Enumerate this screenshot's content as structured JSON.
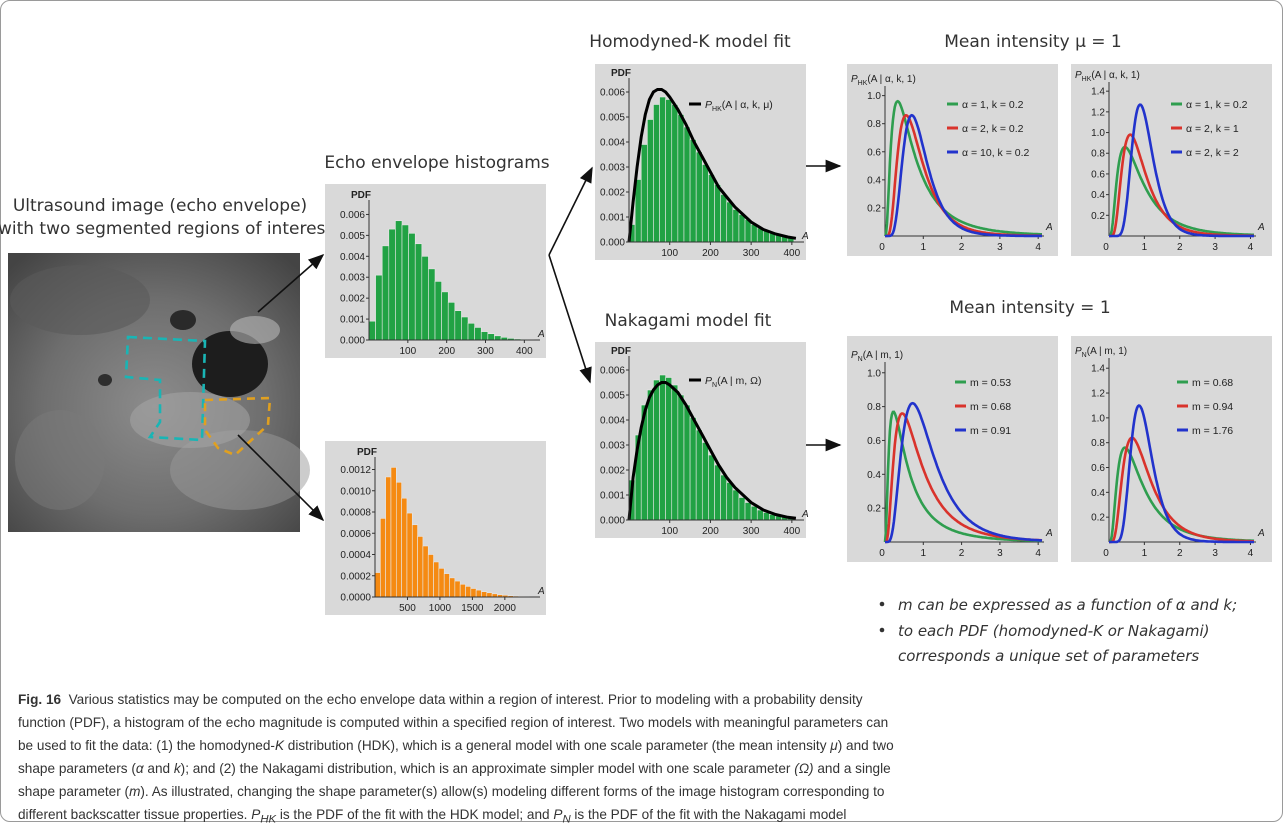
{
  "figure": {
    "texts": {
      "ultrasound_line1": "Ultrasound image (echo envelope)",
      "ultrasound_line2": "with two segmented regions of interest",
      "echo_title": "Echo envelope histograms",
      "hk_fit_title": "Homodyned-K model fit",
      "nk_fit_title": "Nakagami model fit",
      "mean_hk": "Mean intensity μ = 1",
      "mean_nk": "Mean intensity = 1",
      "bullet1": "m can be expressed as a function of α and k;",
      "bullet2a": "to each PDF (homodyned-K or Nakagami)",
      "bullet2b": "corresponds a unique set of parameters",
      "hk_fit_legend": "P_HK(A | α, k, μ)",
      "nk_fit_legend": "P_N(A | m, Ω)"
    },
    "colors": {
      "panel_bg": "#d9d9d9",
      "green_bar": "#21a244",
      "orange_bar": "#f58a12",
      "curve_green": "#2f9e4f",
      "curve_red": "#d9332c",
      "curve_blue": "#2233cc",
      "roi_cyan": "#19b5b5",
      "roi_orange": "#e0a020"
    }
  },
  "chart_data": [
    {
      "id": "echo-green",
      "type": "bar",
      "ylabel": "PDF",
      "xlabel": "A",
      "xticks": [
        100,
        200,
        300,
        400
      ],
      "yticks": [
        0.0,
        0.001,
        0.002,
        0.003,
        0.004,
        0.005,
        0.006
      ],
      "ytick_labels": [
        "0.000",
        "0.001",
        "0.002",
        "0.003",
        "0.004",
        "0.005",
        "0.006"
      ],
      "xlim": [
        0,
        430
      ],
      "ylim": [
        0,
        0.0065
      ],
      "bin_width": 17,
      "values": [
        0.0009,
        0.0031,
        0.0045,
        0.0053,
        0.0057,
        0.0055,
        0.0051,
        0.0046,
        0.004,
        0.0034,
        0.0028,
        0.0023,
        0.0018,
        0.0014,
        0.0011,
        0.0008,
        0.0006,
        0.0004,
        0.0003,
        0.0002,
        0.00013,
        8e-05,
        5e-05,
        3e-05,
        2e-05
      ]
    },
    {
      "id": "echo-orange",
      "type": "bar",
      "ylabel": "PDF",
      "xlabel": "A",
      "xticks": [
        500,
        1000,
        1500,
        2000
      ],
      "yticks": [
        0.0,
        0.0002,
        0.0004,
        0.0006,
        0.0008,
        0.001,
        0.0012
      ],
      "ytick_labels": [
        "0.0000",
        "0.0002",
        "0.0004",
        "0.0006",
        "0.0008",
        "0.0010",
        "0.0012"
      ],
      "xlim": [
        0,
        2480
      ],
      "ylim": [
        0,
        0.00128
      ],
      "bin_width": 82,
      "values": [
        0.00023,
        0.00074,
        0.00113,
        0.00122,
        0.00108,
        0.00093,
        0.00079,
        0.00068,
        0.00057,
        0.00048,
        0.0004,
        0.00033,
        0.00027,
        0.00022,
        0.00018,
        0.00015,
        0.00012,
        0.0001,
        8e-05,
        6.5e-05,
        5e-05,
        4e-05,
        3e-05,
        2.2e-05,
        1.7e-05,
        1.2e-05,
        9e-06,
        6e-06,
        4e-06
      ]
    },
    {
      "id": "hk-fit",
      "type": "bar",
      "ylabel": "PDF",
      "xlabel": "A",
      "xticks": [
        100,
        200,
        300,
        400
      ],
      "yticks": [
        0.0,
        0.001,
        0.002,
        0.003,
        0.004,
        0.005,
        0.006
      ],
      "ytick_labels": [
        "0.000",
        "0.001",
        "0.002",
        "0.003",
        "0.004",
        "0.005",
        "0.006"
      ],
      "xlim": [
        0,
        420
      ],
      "ylim": [
        0,
        0.0064
      ],
      "bin_width": 15,
      "values": [
        0.0007,
        0.0025,
        0.0039,
        0.0049,
        0.0055,
        0.0058,
        0.0057,
        0.0055,
        0.0051,
        0.0046,
        0.0041,
        0.0036,
        0.0031,
        0.0027,
        0.0023,
        0.0019,
        0.0016,
        0.0013,
        0.0011,
        0.0009,
        0.0007,
        0.00056,
        0.00045,
        0.00035,
        0.00028,
        0.00022,
        0.00017
      ],
      "curve": {
        "name": "P_HK(A | α, k, μ)",
        "x": [
          0,
          10,
          20,
          30,
          40,
          50,
          60,
          70,
          80,
          90,
          100,
          120,
          140,
          160,
          180,
          200,
          220,
          240,
          260,
          280,
          300,
          330,
          360,
          390,
          410
        ],
        "y": [
          0,
          0.0016,
          0.003,
          0.0042,
          0.0051,
          0.0057,
          0.006,
          0.0061,
          0.0061,
          0.006,
          0.0058,
          0.0053,
          0.0047,
          0.004,
          0.0034,
          0.0028,
          0.0022,
          0.0018,
          0.0014,
          0.0011,
          0.0008,
          0.0005,
          0.00032,
          0.0002,
          0.00015
        ]
      }
    },
    {
      "id": "nk-fit",
      "type": "bar",
      "ylabel": "PDF",
      "xlabel": "A",
      "xticks": [
        100,
        200,
        300,
        400
      ],
      "yticks": [
        0.0,
        0.001,
        0.002,
        0.003,
        0.004,
        0.005,
        0.006
      ],
      "ytick_labels": [
        "0.000",
        "0.001",
        "0.002",
        "0.003",
        "0.004",
        "0.005",
        "0.006"
      ],
      "xlim": [
        0,
        420
      ],
      "ylim": [
        0,
        0.0064
      ],
      "bin_width": 15,
      "values": [
        0.0016,
        0.0034,
        0.0046,
        0.0052,
        0.0056,
        0.0058,
        0.0057,
        0.0054,
        0.005,
        0.0046,
        0.0041,
        0.0036,
        0.0031,
        0.0026,
        0.0022,
        0.0018,
        0.0015,
        0.0012,
        0.0009,
        0.0007,
        0.00055,
        0.0004,
        0.0003,
        0.00022,
        0.00016,
        0.00012,
        9e-05
      ],
      "curve": {
        "name": "P_N(A | m, Ω)",
        "x": [
          0,
          10,
          20,
          30,
          40,
          50,
          60,
          70,
          80,
          90,
          100,
          120,
          140,
          160,
          180,
          200,
          220,
          240,
          260,
          280,
          300,
          330,
          360,
          390,
          410
        ],
        "y": [
          0,
          0.0017,
          0.0028,
          0.0037,
          0.0044,
          0.0049,
          0.0052,
          0.0054,
          0.0055,
          0.0055,
          0.0054,
          0.0051,
          0.0046,
          0.004,
          0.0034,
          0.0028,
          0.0022,
          0.0017,
          0.0013,
          0.001,
          0.0007,
          0.0004,
          0.00022,
          0.00011,
          7e-05
        ]
      }
    },
    {
      "id": "hk-a",
      "type": "line",
      "ylabel": "P_HK(A | α, k, 1)",
      "xlabel": "A",
      "xticks": [
        1,
        2,
        3,
        4
      ],
      "yticks": [
        0.2,
        0.4,
        0.6,
        0.8,
        1.0
      ],
      "ytick_labels": [
        "0.2",
        "0.4",
        "0.6",
        "0.8",
        "1.0"
      ],
      "xlim": [
        0,
        4.1
      ],
      "ylim": [
        0,
        1.04
      ],
      "series": [
        {
          "name": "α = 1,  k = 0.2",
          "color": "#2f9e4f",
          "shape": {
            "peak_x": 0.33,
            "peak_y": 0.96,
            "s": 0.85
          }
        },
        {
          "name": "α = 2,  k = 0.2",
          "color": "#d9332c",
          "shape": {
            "peak_x": 0.55,
            "peak_y": 0.86,
            "s": 0.58
          }
        },
        {
          "name": "α = 10,  k = 0.2",
          "color": "#2233cc",
          "shape": {
            "peak_x": 0.7,
            "peak_y": 0.86,
            "s": 0.45
          }
        }
      ]
    },
    {
      "id": "hk-b",
      "type": "line",
      "ylabel": "P_HK(A | α, k, 1)",
      "xlabel": "A",
      "xticks": [
        1,
        2,
        3,
        4
      ],
      "yticks": [
        0.2,
        0.4,
        0.6,
        0.8,
        1.0,
        1.2,
        1.4
      ],
      "ytick_labels": [
        "0.2",
        "0.4",
        "0.6",
        "0.8",
        "1.0",
        "1.2",
        "1.4"
      ],
      "xlim": [
        0,
        4.1
      ],
      "ylim": [
        0,
        1.45
      ],
      "series": [
        {
          "name": "α = 1,  k = 0.2",
          "color": "#2f9e4f",
          "shape": {
            "peak_x": 0.45,
            "peak_y": 0.86,
            "s": 0.75
          }
        },
        {
          "name": "α = 2,  k = 1",
          "color": "#d9332c",
          "shape": {
            "peak_x": 0.6,
            "peak_y": 0.98,
            "s": 0.55
          }
        },
        {
          "name": "α = 2,  k = 2",
          "color": "#2233cc",
          "shape": {
            "peak_x": 0.88,
            "peak_y": 1.27,
            "s": 0.34
          }
        }
      ]
    },
    {
      "id": "nk-a",
      "type": "line",
      "ylabel": "P_N(A | m, 1)",
      "xlabel": "A",
      "xticks": [
        1,
        2,
        3,
        4
      ],
      "yticks": [
        0.2,
        0.4,
        0.6,
        0.8,
        1.0
      ],
      "ytick_labels": [
        "0.2",
        "0.4",
        "0.6",
        "0.8",
        "1.0"
      ],
      "xlim": [
        0,
        4.1
      ],
      "ylim": [
        0,
        1.04
      ],
      "series": [
        {
          "name": "m = 0.53",
          "color": "#2f9e4f",
          "shape": {
            "peak_x": 0.22,
            "peak_y": 0.77,
            "s": 0.95
          }
        },
        {
          "name": "m = 0.68",
          "color": "#d9332c",
          "shape": {
            "peak_x": 0.45,
            "peak_y": 0.76,
            "s": 0.75
          }
        },
        {
          "name": "m = 0.91",
          "color": "#2233cc",
          "shape": {
            "peak_x": 0.72,
            "peak_y": 0.82,
            "s": 0.58
          }
        }
      ]
    },
    {
      "id": "nk-b",
      "type": "line",
      "ylabel": "P_N(A | m, 1)",
      "xlabel": "A",
      "xticks": [
        1,
        2,
        3,
        4
      ],
      "yticks": [
        0.2,
        0.4,
        0.6,
        0.8,
        1.0,
        1.2,
        1.4
      ],
      "ytick_labels": [
        "0.2",
        "0.4",
        "0.6",
        "0.8",
        "1.0",
        "1.2",
        "1.4"
      ],
      "xlim": [
        0,
        4.1
      ],
      "ylim": [
        0,
        1.45
      ],
      "series": [
        {
          "name": "m = 0.68",
          "color": "#2f9e4f",
          "shape": {
            "peak_x": 0.45,
            "peak_y": 0.76,
            "s": 0.75
          }
        },
        {
          "name": "m = 0.94",
          "color": "#d9332c",
          "shape": {
            "peak_x": 0.65,
            "peak_y": 0.84,
            "s": 0.58
          }
        },
        {
          "name": "m = 1.76",
          "color": "#2233cc",
          "shape": {
            "peak_x": 0.85,
            "peak_y": 1.1,
            "s": 0.36
          }
        }
      ]
    }
  ],
  "caption": {
    "fig_label": "Fig. 16",
    "l1": "Various statistics may be computed on the echo envelope data within a region of interest. Prior to modeling with a probability density",
    "l2": "function (PDF), a histogram of the echo magnitude is computed within a specified region of interest. Two models with meaningful parameters can",
    "l3a": "be used to fit the data: (1) the homodyned-",
    "l3k": "K",
    "l3b": " distribution (HDK), which is a general model with one scale parameter (the mean intensity ",
    "l3mu": "μ",
    "l3c": ") and two",
    "l4a": "shape parameters (",
    "l4alpha": "α",
    "l4b": " and ",
    "l4k": "k",
    "l4c": "); and (2) the Nakagami distribution, which is an approximate simpler model with one scale parameter ",
    "l4omega": "(Ω)",
    "l4d": " and a single",
    "l5a": "shape parameter (",
    "l5m": "m",
    "l5b": "). As illustrated, changing the shape parameter(s) allow(s) modeling different forms of the image histogram corresponding to",
    "l6a": "different backscatter tissue properties. ",
    "l6phk": "P",
    "l6hk": "HK",
    "l6b": " is the PDF of the fit with the HDK model; and ",
    "l6pn": "P",
    "l6n": "N",
    "l6c": " is the PDF of the fit with the Nakagami model"
  }
}
